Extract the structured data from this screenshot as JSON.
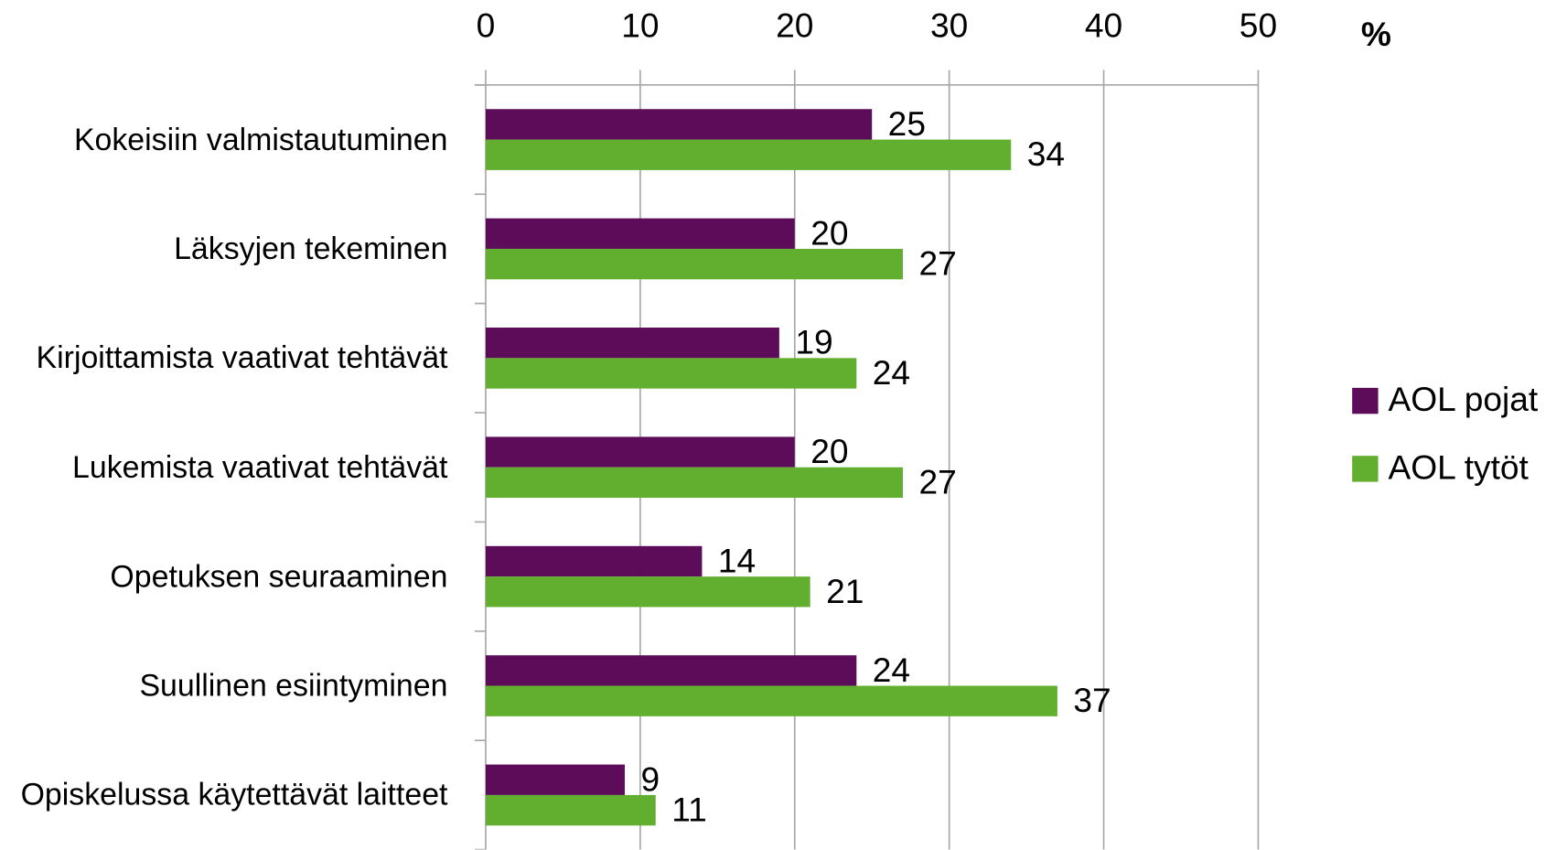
{
  "chart_data": {
    "type": "barh",
    "categories": [
      "Kokeisiin valmistautuminen",
      "Läksyjen tekeminen",
      "Kirjoittamista vaativat tehtävät",
      "Lukemista vaativat tehtävät",
      "Opetuksen seuraaminen",
      "Suullinen esiintyminen",
      "Opiskelussa käytettävät laitteet"
    ],
    "series": [
      {
        "name": "AOL pojat",
        "color": "#5c0c59",
        "values": [
          25,
          20,
          19,
          20,
          14,
          24,
          9
        ]
      },
      {
        "name": "AOL tytöt",
        "color": "#62ae2f",
        "values": [
          34,
          27,
          24,
          27,
          21,
          37,
          11
        ]
      }
    ],
    "xlim": [
      0,
      50
    ],
    "xticks": [
      0,
      10,
      20,
      30,
      40,
      50
    ],
    "x_axis_unit": "%",
    "grid": true,
    "legend_position": "right"
  }
}
